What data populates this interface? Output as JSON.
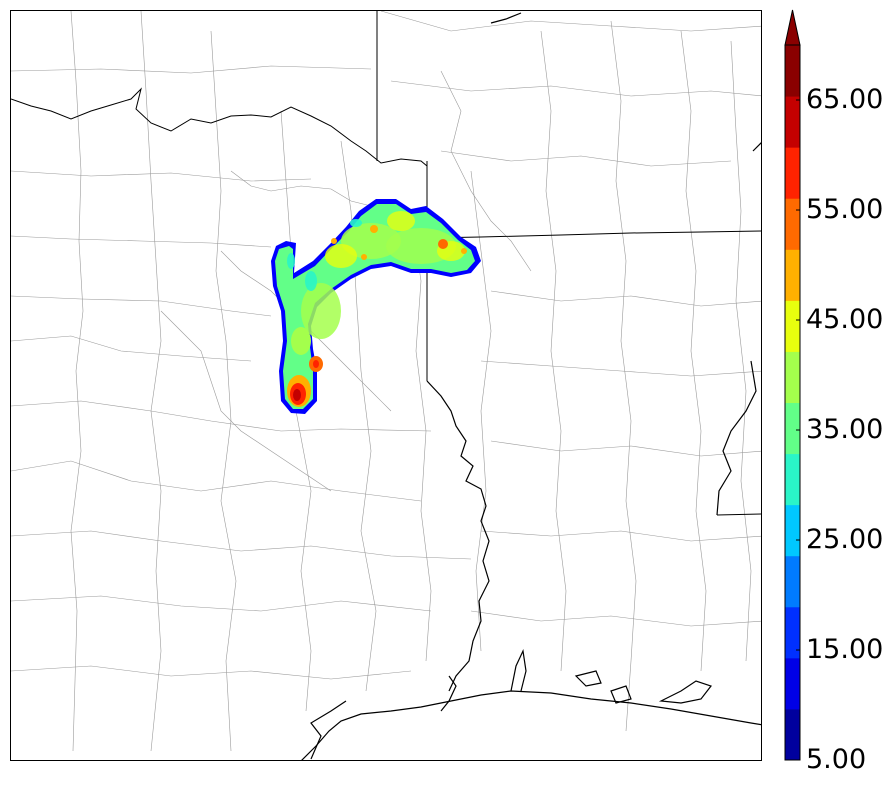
{
  "map": {
    "features": [
      "county-boundaries",
      "state-boundaries",
      "coastline",
      "precipitation-field"
    ]
  },
  "colorbar": {
    "min": 5,
    "max": 70,
    "step": 5,
    "extend": "max",
    "colors": [
      "#00009e",
      "#0000e6",
      "#0030ff",
      "#007bff",
      "#00c8ff",
      "#2af5c8",
      "#62ff88",
      "#a4ff4c",
      "#e8ff0e",
      "#ffb000",
      "#ff6a00",
      "#ff2300",
      "#c40000",
      "#8a0000"
    ],
    "tick_labels": [
      "5.00",
      "15.00",
      "25.00",
      "35.00",
      "45.00",
      "55.00",
      "65.00"
    ]
  }
}
